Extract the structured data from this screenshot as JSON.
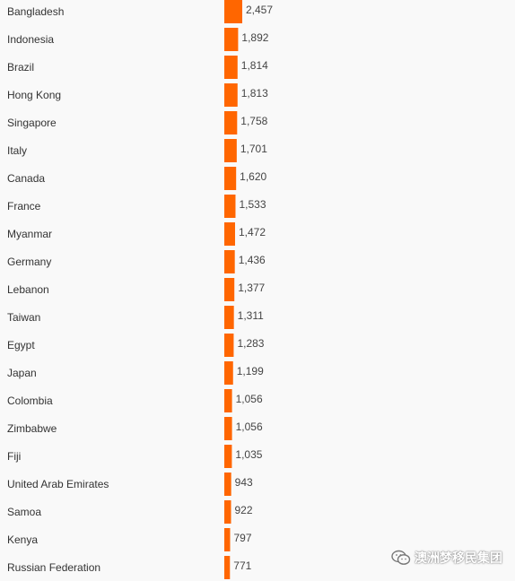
{
  "chart_data": {
    "type": "bar",
    "orientation": "horizontal",
    "categories": [
      "Bangladesh",
      "Indonesia",
      "Brazil",
      "Hong Kong",
      "Singapore",
      "Italy",
      "Canada",
      "France",
      "Myanmar",
      "Germany",
      "Lebanon",
      "Taiwan",
      "Egypt",
      "Japan",
      "Colombia",
      "Zimbabwe",
      "Fiji",
      "United Arab Emirates",
      "Samoa",
      "Kenya",
      "Russian Federation"
    ],
    "values": [
      2457,
      1892,
      1814,
      1813,
      1758,
      1701,
      1620,
      1533,
      1472,
      1436,
      1377,
      1311,
      1283,
      1199,
      1056,
      1056,
      1035,
      943,
      922,
      797,
      771
    ],
    "value_labels": [
      "2,457",
      "1,892",
      "1,814",
      "1,813",
      "1,758",
      "1,701",
      "1,620",
      "1,533",
      "1,472",
      "1,436",
      "1,377",
      "1,311",
      "1,283",
      "1,199",
      "1,056",
      "1,056",
      "1,035",
      "943",
      "922",
      "797",
      "771"
    ],
    "bar_color": "#ff6600",
    "grid": false,
    "legend": "none"
  },
  "watermark": {
    "text": "澳洲梦移民集团",
    "icon": "wechat-icon"
  }
}
